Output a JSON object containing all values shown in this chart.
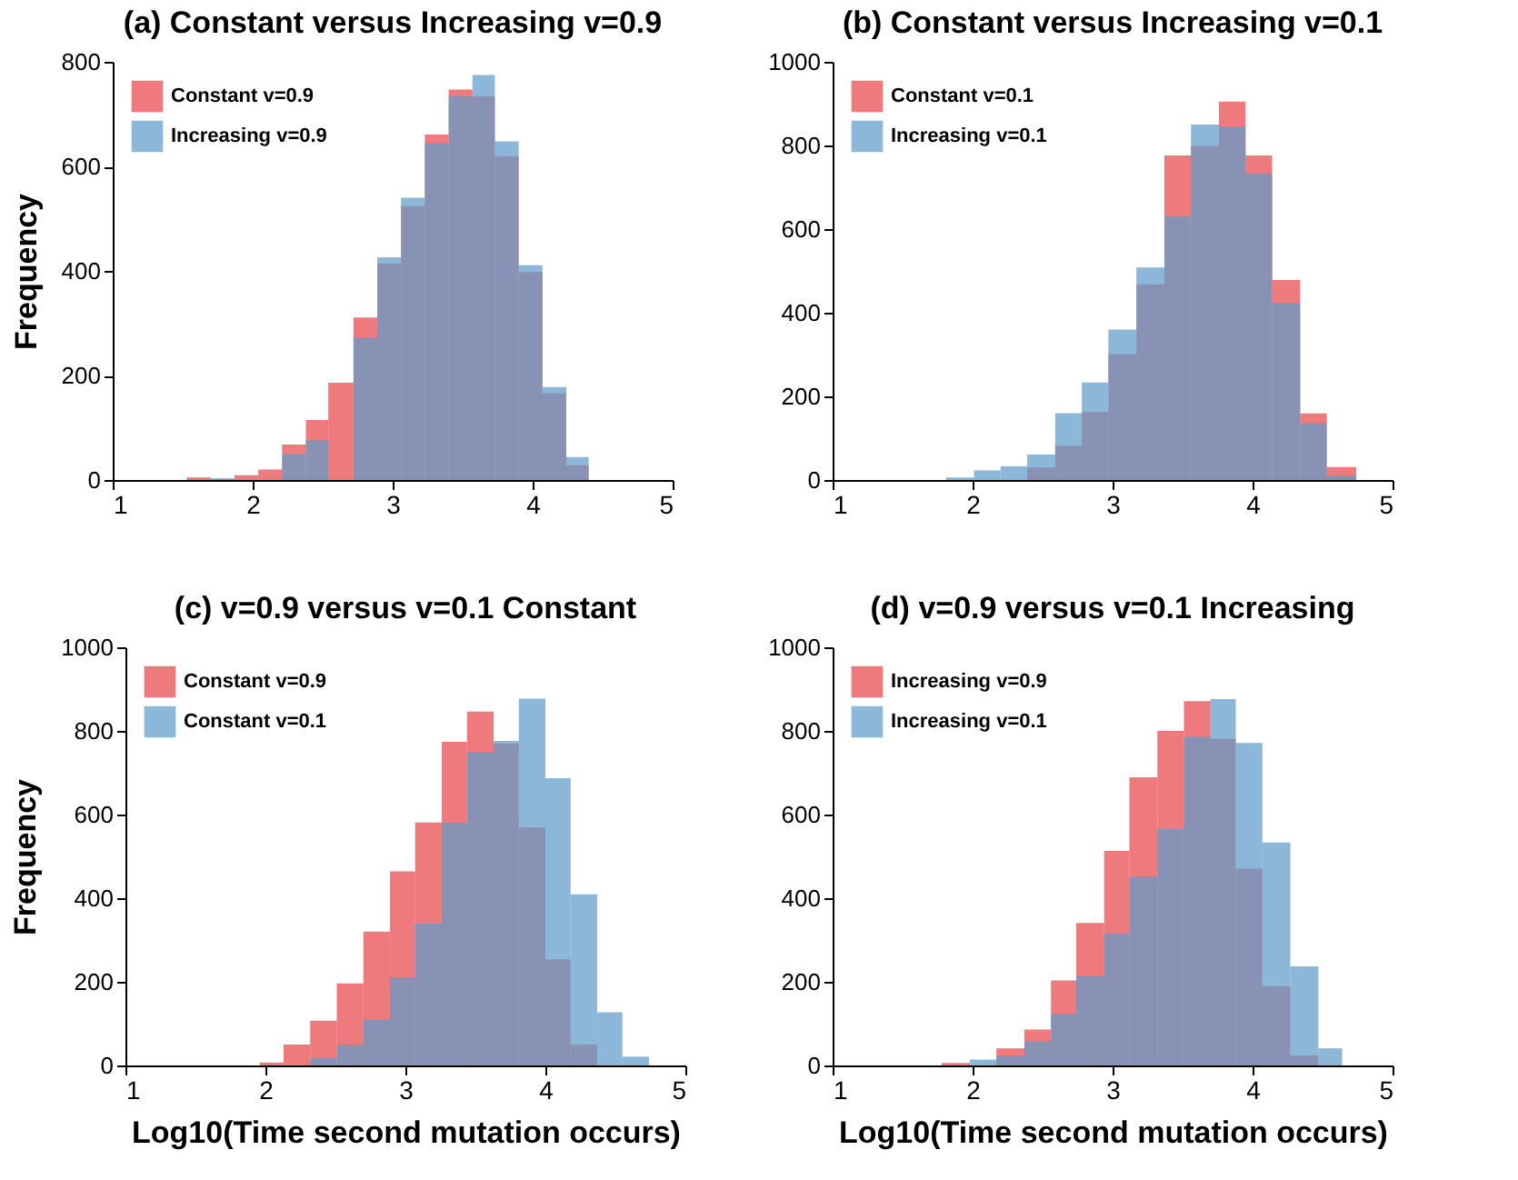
{
  "chart_data": [
    {
      "type": "histogram",
      "title": "(a) Constant versus Increasing v=0.9",
      "ylabel": "Frequency",
      "xlim": [
        1,
        5
      ],
      "xticks": [
        1,
        2,
        3,
        4,
        5
      ],
      "ylim": [
        0,
        800
      ],
      "yticks": [
        0,
        200,
        400,
        600,
        800
      ],
      "grid": false,
      "legend": "top left",
      "bins": [
        1.53,
        1.7,
        1.87,
        2.04,
        2.21,
        2.38,
        2.54,
        2.72,
        2.89,
        3.06,
        3.23,
        3.4,
        3.57,
        3.73,
        3.9,
        4.07,
        4.24,
        4.4
      ],
      "series": [
        {
          "name": "Constant v=0.9",
          "color": "#e8474c",
          "values": [
            5,
            2,
            9,
            20,
            68,
            115,
            186,
            311,
            414,
            524,
            661,
            747,
            734,
            619,
            398,
            166,
            28
          ]
        },
        {
          "name": "Increasing  v=0.9",
          "color": "#5f9bcb",
          "values": [
            0,
            3,
            null,
            null,
            49,
            76,
            null,
            272,
            426,
            540,
            644,
            734,
            775,
            648,
            411,
            178,
            44
          ]
        }
      ]
    },
    {
      "type": "histogram",
      "title": "(b) Constant versus Increasing v=0.1",
      "xlim": [
        1,
        5
      ],
      "xticks": [
        1,
        2,
        3,
        4,
        5
      ],
      "ylim": [
        0,
        1000
      ],
      "yticks": [
        0,
        200,
        400,
        600,
        800,
        1000
      ],
      "grid": false,
      "legend": "top left",
      "bins": [
        1.81,
        2.01,
        2.2,
        2.39,
        2.59,
        2.78,
        2.97,
        3.17,
        3.37,
        3.56,
        3.76,
        3.95,
        4.14,
        4.34,
        4.53,
        4.74
      ],
      "series": [
        {
          "name": "Constant v=0.1",
          "color": "#e8474c",
          "values": [
            0,
            null,
            null,
            30,
            82,
            163,
            301,
            468,
            776,
            799,
            905,
            776,
            478,
            159,
            31
          ]
        },
        {
          "name": "Increasing v=0.1",
          "color": "#5f9bcb",
          "values": [
            6,
            23,
            33,
            61,
            160,
            233,
            360,
            508,
            630,
            850,
            845,
            733,
            424,
            136,
            11
          ]
        }
      ]
    },
    {
      "type": "histogram",
      "title": "(c) v=0.9 versus v=0.1 Constant",
      "xlabel": "Log10(Time second mutation occurs)",
      "ylabel": "Frequency",
      "xlim": [
        1,
        5
      ],
      "xticks": [
        1,
        2,
        3,
        4,
        5
      ],
      "ylim": [
        0,
        1000
      ],
      "yticks": [
        0,
        200,
        400,
        600,
        800,
        1000
      ],
      "grid": false,
      "legend": "top left",
      "bins": [
        1.96,
        2.13,
        2.32,
        2.51,
        2.7,
        2.89,
        3.07,
        3.26,
        3.44,
        3.63,
        3.81,
        4.0,
        4.18,
        4.37,
        4.55,
        4.74
      ],
      "series": [
        {
          "name": "Constant v=0.9",
          "color": "#e8474c",
          "values": [
            7,
            50,
            107,
            196,
            320,
            464,
            581,
            774,
            846,
            770,
            569,
            254,
            50,
            null,
            null
          ]
        },
        {
          "name": "Constant v=0.1",
          "color": "#5f9bcb",
          "values": [
            null,
            null,
            17,
            50,
            110,
            211,
            339,
            581,
            749,
            776,
            877,
            687,
            409,
            127,
            21
          ]
        }
      ]
    },
    {
      "type": "histogram",
      "title": "(d) v=0.9 versus v=0.1 Increasing",
      "xlabel": "Log10(Time second mutation occurs)",
      "xlim": [
        1,
        5
      ],
      "xticks": [
        1,
        2,
        3,
        4,
        5
      ],
      "ylim": [
        0,
        1000
      ],
      "yticks": [
        0,
        200,
        400,
        600,
        800,
        1000
      ],
      "grid": false,
      "legend": "top left",
      "bins": [
        1.78,
        1.98,
        2.17,
        2.37,
        2.56,
        2.74,
        2.94,
        3.12,
        3.32,
        3.51,
        3.7,
        3.88,
        4.07,
        4.27,
        4.47,
        4.64
      ],
      "series": [
        {
          "name": "Increasing v=0.9",
          "color": "#e8474c",
          "values": [
            6,
            null,
            41,
            86,
            203,
            341,
            513,
            689,
            800,
            871,
            781,
            471,
            189,
            24,
            null
          ]
        },
        {
          "name": "Increasing v=0.1",
          "color": "#5f9bcb",
          "values": [
            null,
            14,
            24,
            57,
            123,
            214,
            316,
            451,
            566,
            786,
            876,
            771,
            533,
            237,
            41
          ]
        }
      ]
    }
  ]
}
